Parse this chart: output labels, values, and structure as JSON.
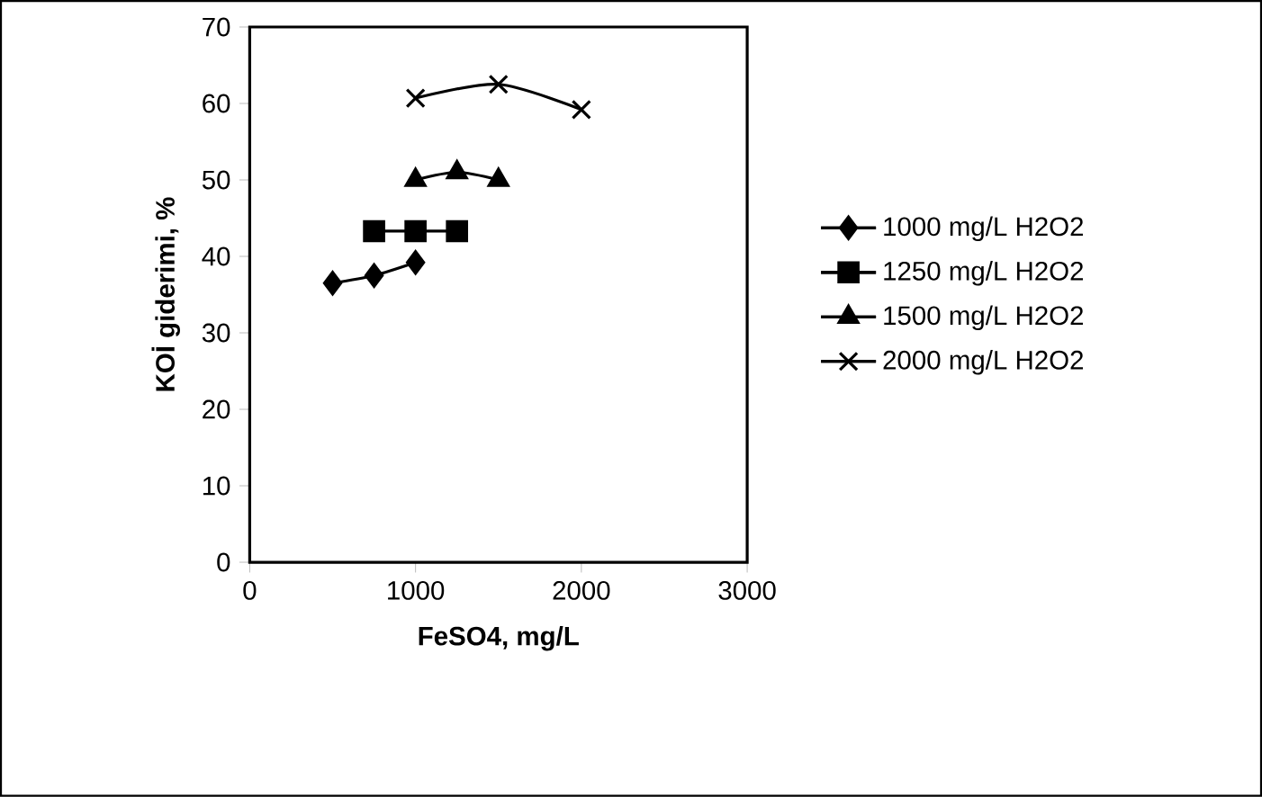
{
  "chart_data": {
    "type": "line",
    "xlabel": "FeSO4, mg/L",
    "ylabel": "KOİ giderimi, %",
    "xlim": [
      0,
      3000
    ],
    "xticks": [
      0,
      1000,
      2000,
      3000
    ],
    "ylim": [
      0,
      70
    ],
    "yticks": [
      0,
      10,
      20,
      30,
      40,
      50,
      60,
      70
    ],
    "legend": "right",
    "grid": false,
    "series": [
      {
        "name": "1000 mg/L H2O2",
        "color": "#000000",
        "marker": "diamond",
        "x": [
          500,
          750,
          1000
        ],
        "values": [
          36.5,
          37.5,
          39.2
        ]
      },
      {
        "name": "1250 mg/L H2O2",
        "color": "#000000",
        "marker": "square",
        "x": [
          750,
          1000,
          1250
        ],
        "values": [
          43.3,
          43.3,
          43.3
        ]
      },
      {
        "name": "1500 mg/L H2O2",
        "color": "#000000",
        "marker": "triangle",
        "x": [
          1000,
          1250,
          1500
        ],
        "values": [
          50.0,
          51.0,
          50.0
        ]
      },
      {
        "name": "2000 mg/L H2O2",
        "color": "#000000",
        "marker": "cross",
        "x": [
          1000,
          1500,
          2000
        ],
        "values": [
          60.7,
          62.5,
          59.2
        ]
      }
    ]
  }
}
